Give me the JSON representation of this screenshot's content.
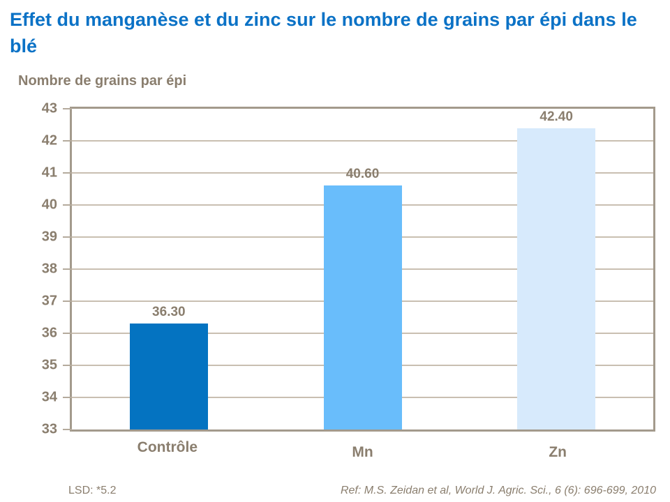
{
  "title": "Effet du manganèse et du zinc sur le nombre de grains par épi dans le blé",
  "footer": {
    "lsd": "LSD: *5.2",
    "ref": "Ref: M.S. Zeidan et al, World J. Agric. Sci., 6 (6): 696-699, 2010"
  },
  "colors": {
    "title_blue": "#0b72c6",
    "text_brown": "#8a7e6e",
    "plot_frame": "#a39a8c",
    "gridline": "#c9bfb1",
    "bar_controle": "#0473c1",
    "bar_mn": "#69bdfb",
    "bar_zn": "#d7eafc"
  },
  "chart_data": {
    "type": "bar",
    "categories": [
      "Contrôle",
      "Mn",
      "Zn"
    ],
    "values": [
      36.3,
      40.6,
      42.4
    ],
    "value_labels": [
      "36.30",
      "40.60",
      "42.40"
    ],
    "bar_colors": [
      "#0473c1",
      "#69bdfb",
      "#d7eafc"
    ],
    "title": "Effet du manganèse et du zinc sur le nombre de grains par épi dans le blé",
    "xlabel": "",
    "ylabel": "Nombre de grains par épi",
    "ylim": [
      33,
      43
    ],
    "yticks": [
      33,
      34,
      35,
      36,
      37,
      38,
      39,
      40,
      41,
      42,
      43
    ],
    "grid": true,
    "legend_position": "none"
  }
}
